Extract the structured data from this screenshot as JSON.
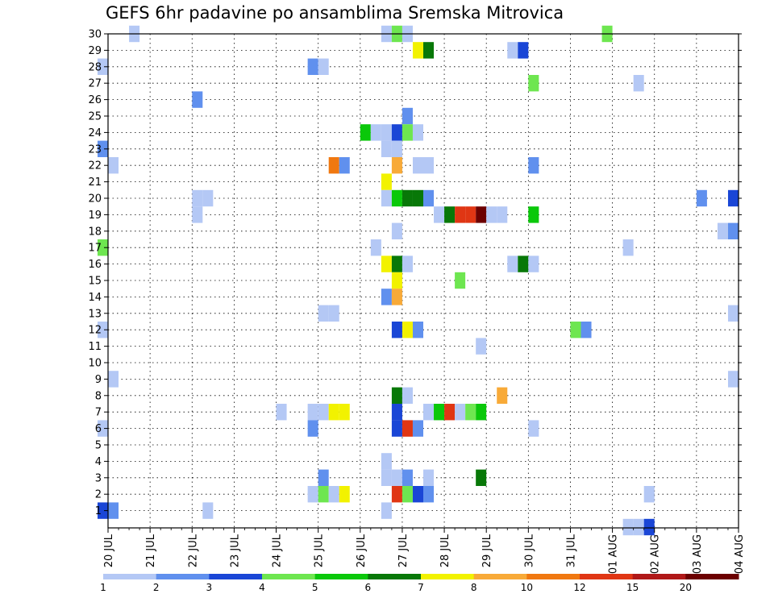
{
  "chart_data": {
    "type": "heatmap",
    "title": "GEFS 6hr padavine po ansamblima Sremska Mitrovica",
    "x_labels": [
      "20 JUL",
      "21 JUL",
      "22 JUL",
      "23 JUL",
      "24 JUL",
      "25 JUL",
      "26 JUL",
      "27 JUL",
      "28 JUL",
      "29 JUL",
      "30 JUL",
      "31 JUL",
      "01 AUG",
      "02 AUG",
      "03 AUG",
      "04 AUG"
    ],
    "y_labels": [
      "1",
      "2",
      "3",
      "4",
      "5",
      "6",
      "7",
      "8",
      "9",
      "10",
      "11",
      "12",
      "13",
      "14",
      "15",
      "16",
      "17",
      "18",
      "19",
      "20",
      "21",
      "22",
      "23",
      "24",
      "25",
      "26",
      "27",
      "28",
      "29",
      "30"
    ],
    "grid": true,
    "legend": {
      "placement": "bottom",
      "labels": [
        "1",
        "2",
        "3",
        "4",
        "5",
        "6",
        "7",
        "8",
        "10",
        "12",
        "15",
        "20"
      ],
      "colors": [
        "#b4c8f5",
        "#6090ee",
        "#1a46d6",
        "#6ee650",
        "#0ac80a",
        "#087808",
        "#f2f200",
        "#f8aa38",
        "#f07810",
        "#e03614",
        "#b01818",
        "#6c0000"
      ]
    },
    "note_value_units": "value = color class index 0-11 (0:1-2, 1:2-3, 2:3-4, 3:4-5, 4:5-6, 5:6-7, 6:7-8, 7:8-10, 8:10-12, 9:12-15, 10:15-20, 11:20+)",
    "cells": [
      [
        0.5,
        30,
        0
      ],
      [
        6.5,
        30,
        0
      ],
      [
        6.75,
        30,
        3
      ],
      [
        7.0,
        30,
        0
      ],
      [
        11.75,
        30,
        3
      ],
      [
        7.25,
        29,
        6
      ],
      [
        7.5,
        29,
        5
      ],
      [
        9.5,
        29,
        0
      ],
      [
        9.75,
        29,
        2
      ],
      [
        -0.25,
        28,
        0
      ],
      [
        4.75,
        28,
        1
      ],
      [
        5.0,
        28,
        0
      ],
      [
        10.0,
        27,
        3
      ],
      [
        12.5,
        27,
        0
      ],
      [
        2.0,
        26,
        1
      ],
      [
        7.0,
        25,
        1
      ],
      [
        6.0,
        24,
        4
      ],
      [
        6.25,
        24,
        0
      ],
      [
        6.5,
        24,
        0
      ],
      [
        6.75,
        24,
        2
      ],
      [
        7.0,
        24,
        3
      ],
      [
        7.25,
        24,
        0
      ],
      [
        6.5,
        23,
        0
      ],
      [
        6.75,
        23,
        0
      ],
      [
        -0.25,
        23,
        1
      ],
      [
        0.0,
        22,
        0
      ],
      [
        5.25,
        22,
        8
      ],
      [
        5.5,
        22,
        1
      ],
      [
        6.75,
        22,
        7
      ],
      [
        7.25,
        22,
        0
      ],
      [
        7.5,
        22,
        0
      ],
      [
        10.0,
        22,
        1
      ],
      [
        6.5,
        21,
        6
      ],
      [
        2.0,
        20,
        0
      ],
      [
        2.25,
        20,
        0
      ],
      [
        6.5,
        20,
        0
      ],
      [
        6.75,
        20,
        4
      ],
      [
        7.0,
        20,
        5
      ],
      [
        7.25,
        20,
        5
      ],
      [
        7.5,
        20,
        1
      ],
      [
        14.0,
        20,
        1
      ],
      [
        14.75,
        20,
        2
      ],
      [
        2.0,
        19,
        0
      ],
      [
        7.75,
        19,
        0
      ],
      [
        8.0,
        19,
        5
      ],
      [
        8.25,
        19,
        9
      ],
      [
        8.5,
        19,
        9
      ],
      [
        8.75,
        19,
        11
      ],
      [
        9.0,
        19,
        0
      ],
      [
        9.25,
        19,
        0
      ],
      [
        10.0,
        19,
        4
      ],
      [
        6.75,
        18,
        0
      ],
      [
        14.5,
        18,
        0
      ],
      [
        14.75,
        18,
        1
      ],
      [
        -0.25,
        17,
        3
      ],
      [
        6.25,
        17,
        0
      ],
      [
        12.25,
        17,
        0
      ],
      [
        6.5,
        16,
        6
      ],
      [
        6.75,
        16,
        5
      ],
      [
        7.0,
        16,
        0
      ],
      [
        9.5,
        16,
        0
      ],
      [
        9.75,
        16,
        5
      ],
      [
        10.0,
        16,
        0
      ],
      [
        6.75,
        15,
        6
      ],
      [
        8.25,
        15,
        3
      ],
      [
        6.5,
        14,
        1
      ],
      [
        6.75,
        14,
        7
      ],
      [
        5.0,
        13,
        0
      ],
      [
        5.25,
        13,
        0
      ],
      [
        14.75,
        13,
        0
      ],
      [
        -0.25,
        12,
        0
      ],
      [
        6.75,
        12,
        2
      ],
      [
        7.0,
        12,
        6
      ],
      [
        7.25,
        12,
        1
      ],
      [
        11.0,
        12,
        3
      ],
      [
        11.25,
        12,
        1
      ],
      [
        8.75,
        11,
        0
      ],
      [
        0.0,
        9,
        0
      ],
      [
        14.75,
        9,
        0
      ],
      [
        6.75,
        8,
        5
      ],
      [
        7.0,
        8,
        0
      ],
      [
        9.25,
        8,
        7
      ],
      [
        4.0,
        7,
        0
      ],
      [
        4.75,
        7,
        0
      ],
      [
        5.0,
        7,
        0
      ],
      [
        5.25,
        7,
        6
      ],
      [
        5.5,
        7,
        6
      ],
      [
        6.75,
        7,
        2
      ],
      [
        7.5,
        7,
        0
      ],
      [
        7.75,
        7,
        4
      ],
      [
        8.0,
        7,
        9
      ],
      [
        8.25,
        7,
        0
      ],
      [
        8.5,
        7,
        3
      ],
      [
        8.75,
        7,
        4
      ],
      [
        -0.25,
        6,
        0
      ],
      [
        4.75,
        6,
        1
      ],
      [
        6.75,
        6,
        2
      ],
      [
        7.0,
        6,
        9
      ],
      [
        7.25,
        6,
        1
      ],
      [
        10.0,
        6,
        0
      ],
      [
        6.5,
        4,
        0
      ],
      [
        5.0,
        3,
        1
      ],
      [
        6.5,
        3,
        0
      ],
      [
        6.75,
        3,
        0
      ],
      [
        7.0,
        3,
        1
      ],
      [
        7.5,
        3,
        0
      ],
      [
        8.75,
        3,
        5
      ],
      [
        4.75,
        2,
        0
      ],
      [
        5.0,
        2,
        3
      ],
      [
        5.25,
        2,
        0
      ],
      [
        5.5,
        2,
        6
      ],
      [
        6.75,
        2,
        9
      ],
      [
        7.0,
        2,
        3
      ],
      [
        7.25,
        2,
        2
      ],
      [
        7.5,
        2,
        1
      ],
      [
        12.75,
        2,
        0
      ],
      [
        -0.25,
        1,
        2
      ],
      [
        0.0,
        1,
        1
      ],
      [
        2.25,
        1,
        0
      ],
      [
        6.5,
        1,
        0
      ],
      [
        12.25,
        0,
        0
      ],
      [
        12.5,
        0,
        0
      ],
      [
        12.75,
        0,
        2
      ]
    ]
  }
}
